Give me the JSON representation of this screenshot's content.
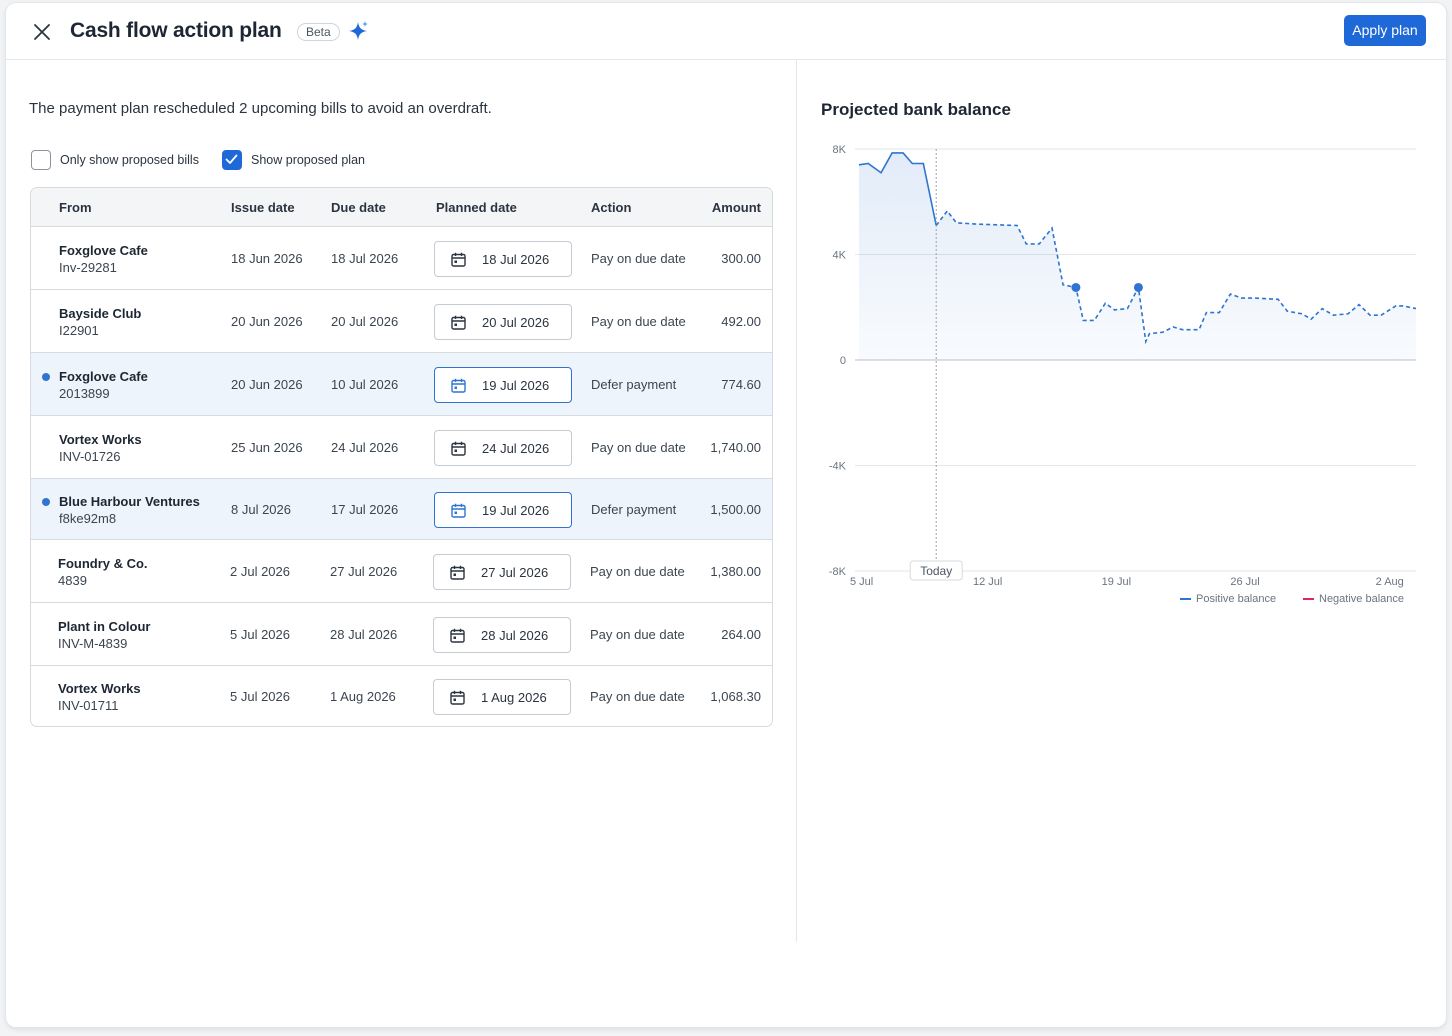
{
  "header": {
    "title": "Cash flow action plan",
    "badge": "Beta",
    "apply_label": "Apply plan"
  },
  "summary": "The payment plan rescheduled 2 upcoming bills to avoid an overdraft.",
  "filters": {
    "only_proposed": {
      "label": "Only show proposed bills",
      "checked": false
    },
    "show_plan": {
      "label": "Show proposed plan",
      "checked": true
    }
  },
  "table": {
    "columns": {
      "from": "From",
      "issue": "Issue date",
      "due": "Due date",
      "planned": "Planned date",
      "action": "Action",
      "amount": "Amount"
    },
    "rows": [
      {
        "name": "Foxglove Cafe",
        "ref": "Inv-29281",
        "issue": "18 Jun 2026",
        "due": "18 Jul 2026",
        "planned": "18 Jul 2026",
        "action": "Pay on due date",
        "amount": "300.00",
        "proposed": false
      },
      {
        "name": "Bayside Club",
        "ref": "I22901",
        "issue": "20 Jun 2026",
        "due": "20 Jul 2026",
        "planned": "20 Jul 2026",
        "action": "Pay on due date",
        "amount": "492.00",
        "proposed": false
      },
      {
        "name": "Foxglove Cafe",
        "ref": "2013899",
        "issue": "20 Jun 2026",
        "due": "10 Jul 2026",
        "planned": "19 Jul 2026",
        "action": "Defer payment",
        "amount": "774.60",
        "proposed": true
      },
      {
        "name": "Vortex Works",
        "ref": "INV-01726",
        "issue": "25 Jun 2026",
        "due": "24 Jul 2026",
        "planned": "24 Jul 2026",
        "action": "Pay on due date",
        "amount": "1,740.00",
        "proposed": false
      },
      {
        "name": "Blue Harbour Ventures",
        "ref": "f8ke92m8",
        "issue": "8 Jul 2026",
        "due": "17 Jul 2026",
        "planned": "19 Jul 2026",
        "action": "Defer payment",
        "amount": "1,500.00",
        "proposed": true
      },
      {
        "name": "Foundry & Co.",
        "ref": "4839",
        "issue": "2 Jul 2026",
        "due": "27 Jul 2026",
        "planned": "27 Jul 2026",
        "action": "Pay on due date",
        "amount": "1,380.00",
        "proposed": false
      },
      {
        "name": "Plant in Colour",
        "ref": "INV-M-4839",
        "issue": "5 Jul 2026",
        "due": "28 Jul 2026",
        "planned": "28 Jul 2026",
        "action": "Pay on due date",
        "amount": "264.00",
        "proposed": false
      },
      {
        "name": "Vortex Works",
        "ref": "INV-01711",
        "issue": "5 Jul 2026",
        "due": "1 Aug 2026",
        "planned": "1 Aug 2026",
        "action": "Pay on due date",
        "amount": "1,068.30",
        "proposed": false
      }
    ]
  },
  "colors": {
    "accent": "#1f68d8",
    "line": "#2f74d0",
    "negative": "#e0245e",
    "highlight_row": "#eef4fc"
  },
  "chart_data": {
    "type": "area",
    "title": "Projected bank balance",
    "x_unit": "days from 5 Jul",
    "ylim": [
      -8000,
      8000
    ],
    "y_ticks": [
      8000,
      4000,
      0,
      -4000,
      -8000
    ],
    "y_tick_labels": [
      "8K",
      "4K",
      "0",
      "-4K",
      "-8K"
    ],
    "x_tick_labels": [
      "5 Jul",
      "12 Jul",
      "19 Jul",
      "26 Jul",
      "2 Aug"
    ],
    "x_ticks": [
      0,
      7,
      14,
      21,
      28
    ],
    "today_label": "Today",
    "today_x": 4.2,
    "grid": true,
    "legend_position": "bottom-right",
    "legend": [
      {
        "name": "Positive balance",
        "color": "#2f74d0"
      },
      {
        "name": "Negative balance",
        "color": "#e0245e"
      }
    ],
    "actual": [
      [
        0,
        7400
      ],
      [
        0.5,
        7450
      ],
      [
        1.2,
        7100
      ],
      [
        1.8,
        7850
      ],
      [
        2.4,
        7850
      ],
      [
        2.9,
        7450
      ],
      [
        3.5,
        7450
      ],
      [
        4.2,
        5100
      ]
    ],
    "projected": [
      [
        4.2,
        5100
      ],
      [
        4.8,
        5650
      ],
      [
        5.3,
        5200
      ],
      [
        6.5,
        5150
      ],
      [
        8.6,
        5100
      ],
      [
        9.1,
        4400
      ],
      [
        9.8,
        4400
      ],
      [
        10.5,
        5000
      ],
      [
        11.1,
        2850
      ],
      [
        11.8,
        2750
      ],
      [
        12.2,
        1500
      ],
      [
        12.8,
        1500
      ],
      [
        13.4,
        2150
      ],
      [
        13.9,
        1900
      ],
      [
        14.6,
        1950
      ],
      [
        15.2,
        2750
      ],
      [
        15.6,
        700
      ],
      [
        15.8,
        1000
      ],
      [
        16.5,
        1050
      ],
      [
        17.1,
        1250
      ],
      [
        17.6,
        1150
      ],
      [
        18.5,
        1150
      ],
      [
        18.9,
        1800
      ],
      [
        19.6,
        1800
      ],
      [
        20.2,
        2500
      ],
      [
        20.8,
        2350
      ],
      [
        21.5,
        2350
      ],
      [
        22.8,
        2300
      ],
      [
        23.3,
        1850
      ],
      [
        24.1,
        1750
      ],
      [
        24.6,
        1550
      ],
      [
        25.2,
        1950
      ],
      [
        25.8,
        1700
      ],
      [
        26.6,
        1750
      ],
      [
        27.2,
        2100
      ],
      [
        27.8,
        1700
      ],
      [
        28.4,
        1700
      ],
      [
        29.2,
        2050
      ],
      [
        29.6,
        2050
      ],
      [
        30.3,
        1950
      ]
    ],
    "markers": [
      [
        11.8,
        2750
      ],
      [
        15.2,
        2750
      ]
    ]
  }
}
